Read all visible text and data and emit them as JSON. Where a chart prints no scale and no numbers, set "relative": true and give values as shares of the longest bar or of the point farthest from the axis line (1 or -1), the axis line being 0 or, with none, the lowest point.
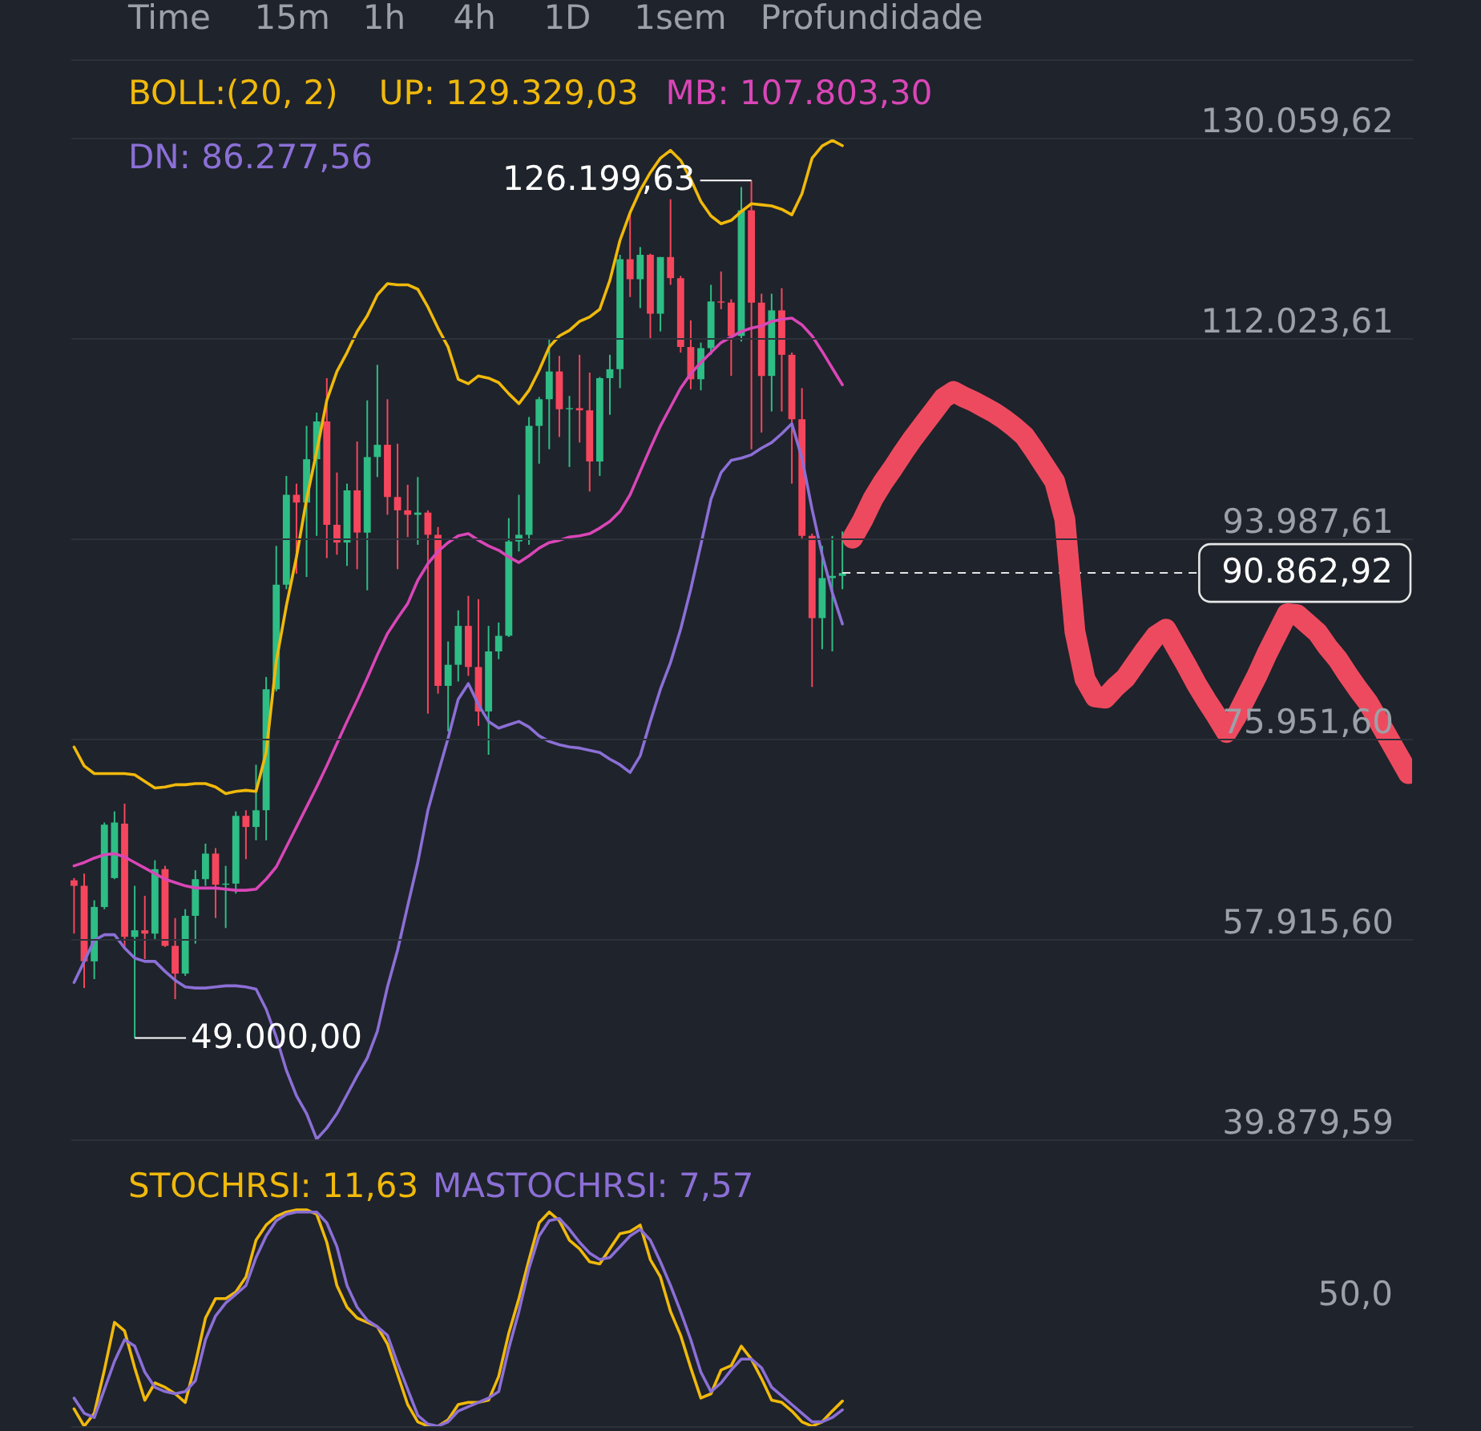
{
  "chart_data": [
    {
      "type": "other",
      "annotations": [
        "Time",
        "15m",
        "1h",
        "4h",
        "1D",
        "1sem",
        "Profundidade"
      ]
    },
    {
      "type": "candlestick",
      "categories": [
        null,
        null,
        null,
        null,
        null,
        null,
        null,
        null,
        null,
        null,
        null,
        null,
        null,
        null,
        null,
        null,
        null,
        null,
        null,
        null,
        null,
        null,
        null,
        null,
        null,
        null,
        null,
        null,
        null,
        null,
        null,
        null,
        null,
        null,
        null,
        null,
        null,
        null,
        null,
        null,
        null,
        null,
        null,
        null,
        null,
        null,
        null,
        null,
        null,
        null,
        null,
        null,
        null,
        null,
        null,
        null,
        null,
        null,
        null,
        null,
        null,
        null,
        null,
        null,
        null,
        null,
        null,
        null,
        null,
        null,
        null,
        null,
        null,
        null,
        null,
        null,
        null,
        null,
        null,
        null,
        null,
        null,
        null,
        null,
        null,
        null,
        null,
        null,
        null,
        null,
        null,
        null,
        null,
        null,
        null,
        null,
        null,
        null,
        null,
        null,
        null,
        null,
        null,
        null,
        null,
        null,
        null,
        null,
        null,
        null,
        null,
        null,
        null,
        null,
        null,
        null,
        null,
        null,
        null,
        null,
        null,
        null,
        null,
        null,
        null,
        null,
        null,
        null,
        null,
        null,
        null,
        null,
        null
      ],
      "ohlc": [
        [
          63200,
          63400,
          58400,
          62700
        ],
        [
          62700,
          63800,
          53500,
          55900
        ],
        [
          55900,
          61400,
          54300,
          60800
        ],
        [
          60800,
          68400,
          60600,
          68200
        ],
        [
          63400,
          69400,
          63300,
          68400
        ],
        [
          68300,
          70100,
          57200,
          58100
        ],
        [
          58100,
          62700,
          49000,
          58700
        ],
        [
          58700,
          61800,
          56100,
          58400
        ],
        [
          58400,
          65000,
          57800,
          64200
        ],
        [
          64200,
          64500,
          57200,
          57300
        ],
        [
          57300,
          59800,
          52500,
          54800
        ],
        [
          54800,
          60600,
          54600,
          60000
        ],
        [
          60000,
          64100,
          57500,
          63300
        ],
        [
          63300,
          66500,
          62700,
          65600
        ],
        [
          65600,
          66100,
          59800,
          62800
        ],
        [
          62800,
          64500,
          58900,
          62900
        ],
        [
          62900,
          69400,
          62000,
          69000
        ],
        [
          69000,
          69500,
          65100,
          68000
        ],
        [
          68000,
          73600,
          66800,
          69500
        ],
        [
          69500,
          81500,
          66800,
          80400
        ],
        [
          80400,
          93300,
          80200,
          89800
        ],
        [
          89800,
          99600,
          89400,
          97900
        ],
        [
          97900,
          98900,
          90800,
          97200
        ],
        [
          97200,
          104100,
          90500,
          101100
        ],
        [
          101100,
          105300,
          94200,
          104500
        ],
        [
          104500,
          108400,
          92200,
          95200
        ],
        [
          95200,
          99900,
          92500,
          93600
        ],
        [
          93600,
          98900,
          91500,
          98300
        ],
        [
          98300,
          102700,
          91200,
          94500
        ],
        [
          94500,
          106400,
          89300,
          101300
        ],
        [
          101300,
          109600,
          99500,
          102400
        ],
        [
          102400,
          106500,
          96100,
          97700
        ],
        [
          97700,
          102500,
          91200,
          96500
        ],
        [
          96500,
          98800,
          94100,
          96100
        ],
        [
          96100,
          99500,
          93400,
          96300
        ],
        [
          96300,
          96500,
          78200,
          94300
        ],
        [
          94300,
          95000,
          80000,
          80700
        ],
        [
          80700,
          84700,
          76600,
          82600
        ],
        [
          82600,
          87500,
          81100,
          86100
        ],
        [
          86100,
          88800,
          81600,
          82400
        ],
        [
          82400,
          88500,
          77100,
          78400
        ],
        [
          78400,
          86100,
          74500,
          83800
        ],
        [
          83800,
          86400,
          83100,
          85200
        ],
        [
          85200,
          95800,
          85100,
          93700
        ],
        [
          93700,
          97900,
          92800,
          94300
        ],
        [
          94300,
          104900,
          93400,
          104100
        ],
        [
          104100,
          106700,
          100700,
          106500
        ],
        [
          106500,
          111900,
          102000,
          109000
        ],
        [
          109000,
          110400,
          103100,
          105600
        ],
        [
          105600,
          106800,
          100400,
          105700
        ],
        [
          105700,
          110500,
          102600,
          105500
        ],
        [
          105500,
          108900,
          98200,
          100900
        ],
        [
          100900,
          108500,
          99600,
          108400
        ],
        [
          108400,
          110500,
          105100,
          109200
        ],
        [
          109200,
          119500,
          107500,
          119100
        ],
        [
          119100,
          123200,
          115700,
          117300
        ],
        [
          117300,
          120200,
          114700,
          119500
        ],
        [
          119500,
          119600,
          112000,
          114200
        ],
        [
          114200,
          119300,
          112600,
          119300
        ],
        [
          119300,
          124500,
          116800,
          117400
        ],
        [
          117400,
          117600,
          110700,
          111200
        ],
        [
          111200,
          113600,
          107400,
          108300
        ],
        [
          108300,
          111600,
          107300,
          111100
        ],
        [
          111100,
          116800,
          110500,
          115300
        ],
        [
          115300,
          118000,
          114600,
          115200
        ],
        [
          115200,
          115500,
          108600,
          112200
        ],
        [
          112200,
          125600,
          111700,
          123500
        ],
        [
          123500,
          126199.63,
          102000,
          115200
        ],
        [
          115200,
          116000,
          103500,
          108600
        ],
        [
          108600,
          116000,
          105400,
          114500
        ],
        [
          114500,
          116500,
          105400,
          110500
        ],
        [
          110500,
          110700,
          98900,
          104700
        ],
        [
          104700,
          107500,
          93900,
          94200
        ],
        [
          94200,
          94400,
          80600,
          86800
        ],
        [
          86800,
          93300,
          84000,
          90400
        ],
        [
          90400,
          94200,
          83800,
          90600
        ],
        [
          90600,
          94600,
          89400,
          90862.92
        ],
        null,
        null,
        null,
        null,
        null,
        null,
        null,
        null,
        null,
        null,
        null,
        null,
        null,
        null,
        null,
        null,
        null,
        null,
        null,
        null,
        null,
        null,
        null,
        null,
        null,
        null,
        null,
        null,
        null,
        null,
        null,
        null,
        null,
        null,
        null,
        null,
        null,
        null,
        null,
        null,
        null,
        null,
        null,
        null,
        null,
        null,
        null,
        null,
        null,
        null,
        null,
        null,
        null,
        null,
        null,
        null
      ],
      "colors": [
        "#f6465d",
        "#f6465d",
        "#2ebd85",
        "#2ebd85",
        "#2ebd85",
        "#f6465d",
        "#2ebd85",
        "#f6465d",
        "#2ebd85",
        "#f6465d",
        "#f6465d",
        "#2ebd85",
        "#2ebd85",
        "#2ebd85",
        "#f6465d",
        "#2ebd85",
        "#2ebd85",
        "#f6465d",
        "#2ebd85",
        "#2ebd85",
        "#2ebd85",
        "#2ebd85",
        "#f6465d",
        "#2ebd85",
        "#2ebd85",
        "#f6465d",
        "#f6465d",
        "#2ebd85",
        "#f6465d",
        "#2ebd85",
        "#2ebd85",
        "#f6465d",
        "#f6465d",
        "#f6465d",
        "#2ebd85",
        "#f6465d",
        "#f6465d",
        "#2ebd85",
        "#2ebd85",
        "#f6465d",
        "#f6465d",
        "#2ebd85",
        "#2ebd85",
        "#2ebd85",
        "#2ebd85",
        "#2ebd85",
        "#2ebd85",
        "#2ebd85",
        "#f6465d",
        "#2ebd85",
        "#f6465d",
        "#f6465d",
        "#2ebd85",
        "#2ebd85",
        "#2ebd85",
        "#f6465d",
        "#2ebd85",
        "#f6465d",
        "#2ebd85",
        "#f6465d",
        "#f6465d",
        "#f6465d",
        "#2ebd85",
        "#2ebd85",
        "#f6465d",
        "#f6465d",
        "#2ebd85",
        "#f6465d",
        "#f6465d",
        "#2ebd85",
        "#f6465d",
        "#f6465d",
        "#f6465d",
        "#f6465d",
        "#2ebd85",
        "#2ebd85",
        "#2ebd85",
        null,
        null,
        null,
        null,
        null,
        null,
        null,
        null,
        null,
        null,
        null,
        null,
        null,
        null,
        null,
        null,
        null,
        null,
        null,
        null,
        null,
        null,
        null,
        null,
        null,
        null,
        null,
        null,
        null,
        null,
        null,
        null,
        null,
        null,
        null,
        null,
        null,
        null,
        null,
        null,
        null,
        null,
        null,
        null,
        null,
        null,
        null,
        null,
        null,
        null,
        null,
        null,
        null,
        null,
        null,
        null
      ],
      "series": [
        {
          "type": "line",
          "name": "UP: 129.329,03",
          "color": "#f0b90b",
          "values": [
            75200,
            73500,
            72800,
            72800,
            72800,
            72800,
            72700,
            72100,
            71500,
            71600,
            71800,
            71800,
            71900,
            71900,
            71600,
            71000,
            71200,
            71300,
            71200,
            74700,
            82900,
            87900,
            92300,
            97500,
            101800,
            106400,
            109000,
            110700,
            112600,
            114000,
            115900,
            116900,
            116800,
            116800,
            116400,
            114800,
            112900,
            111200,
            108300,
            107900,
            108600,
            108400,
            108000,
            107000,
            106100,
            107300,
            109100,
            111200,
            112200,
            112700,
            113500,
            113900,
            114600,
            117200,
            120800,
            123300,
            125300,
            126900,
            128200,
            128900,
            128000,
            126300,
            124300,
            123000,
            122300,
            122600,
            123400,
            124100,
            124000,
            123900,
            123600,
            123100,
            125000,
            128200,
            129300,
            129800,
            129329.03,
            null,
            null,
            null,
            null,
            null,
            null,
            null,
            null,
            null,
            null,
            null,
            null,
            null,
            null,
            null,
            null,
            null,
            null,
            null,
            null,
            null,
            null,
            null,
            null,
            null,
            null,
            null,
            null,
            null,
            null,
            null,
            null,
            null,
            null,
            null,
            null,
            null,
            null,
            null,
            null,
            null,
            null,
            null,
            null,
            null,
            null,
            null,
            null,
            null,
            null,
            null,
            null,
            null,
            null,
            null,
            null
          ]
        },
        {
          "type": "line",
          "name": "MB: 107.803,30",
          "color": "#d946b7",
          "values": [
            64500,
            64800,
            65200,
            65500,
            65600,
            65300,
            64800,
            64300,
            63800,
            63300,
            63000,
            62700,
            62500,
            62500,
            62500,
            62400,
            62300,
            62300,
            62400,
            63300,
            64400,
            66200,
            68000,
            69800,
            71600,
            73500,
            75500,
            77500,
            79400,
            81400,
            83500,
            85400,
            86800,
            88100,
            90200,
            91700,
            92800,
            93600,
            94200,
            94400,
            93800,
            93300,
            92900,
            92300,
            91800,
            92400,
            93100,
            93600,
            93800,
            94100,
            94200,
            94400,
            94900,
            95500,
            96400,
            97900,
            100000,
            102100,
            104100,
            105800,
            107500,
            108800,
            109800,
            110700,
            111600,
            112100,
            112600,
            112900,
            113100,
            113500,
            113700,
            113800,
            113200,
            112200,
            110800,
            109300,
            107803.3,
            null,
            null,
            null,
            null,
            null,
            null,
            null,
            null,
            null,
            null,
            null,
            null,
            null,
            null,
            null,
            null,
            null,
            null,
            null,
            null,
            null,
            null,
            null,
            null,
            null,
            null,
            null,
            null,
            null,
            null,
            null,
            null,
            null,
            null,
            null,
            null,
            null,
            null,
            null,
            null,
            null,
            null,
            null,
            null,
            null,
            null,
            null,
            null,
            null,
            null,
            null,
            null,
            null,
            null,
            null,
            null
          ]
        },
        {
          "type": "line",
          "name": "DN: 86.277,56",
          "color": "#8b6fd6",
          "values": [
            54000,
            55900,
            57800,
            58300,
            58300,
            57100,
            56200,
            55900,
            55900,
            55000,
            54200,
            53600,
            53500,
            53500,
            53600,
            53700,
            53700,
            53600,
            53400,
            51600,
            49100,
            46100,
            43800,
            42200,
            39900,
            40900,
            42200,
            43900,
            45600,
            47200,
            49600,
            53600,
            56900,
            60900,
            64800,
            69500,
            72800,
            76000,
            79500,
            80900,
            79000,
            77500,
            76900,
            77200,
            77500,
            77000,
            76200,
            75700,
            75400,
            75200,
            75100,
            74900,
            74700,
            74100,
            73600,
            72900,
            74400,
            77500,
            80400,
            82800,
            85800,
            89400,
            93400,
            97500,
            99900,
            101000,
            101200,
            101500,
            102100,
            102600,
            103400,
            104300,
            101200,
            96600,
            92500,
            89100,
            86277.56,
            null,
            null,
            null,
            null,
            null,
            null,
            null,
            null,
            null,
            null,
            null,
            null,
            null,
            null,
            null,
            null,
            null,
            null,
            null,
            null,
            null,
            null,
            null,
            null,
            null,
            null,
            null,
            null,
            null,
            null,
            null,
            null,
            null,
            null,
            null,
            null,
            null,
            null,
            null,
            null,
            null,
            null,
            null,
            null,
            null,
            null,
            null,
            null,
            null,
            null,
            null,
            null,
            null,
            null,
            null,
            null
          ]
        },
        {
          "type": "line",
          "color": "#ee4a5f",
          "values": [
            null,
            null,
            null,
            null,
            null,
            null,
            null,
            null,
            null,
            null,
            null,
            null,
            null,
            null,
            null,
            null,
            null,
            null,
            null,
            null,
            null,
            null,
            null,
            null,
            null,
            null,
            null,
            null,
            null,
            null,
            null,
            null,
            null,
            null,
            null,
            null,
            null,
            null,
            null,
            null,
            null,
            null,
            null,
            null,
            null,
            null,
            null,
            null,
            null,
            null,
            null,
            null,
            null,
            null,
            null,
            null,
            null,
            null,
            null,
            null,
            null,
            null,
            null,
            null,
            null,
            null,
            null,
            null,
            null,
            null,
            null,
            null,
            null,
            null,
            null,
            null,
            null,
            94000,
            95600,
            97500,
            99000,
            100300,
            101700,
            103000,
            104200,
            105400,
            106600,
            107200,
            106700,
            106300,
            105800,
            105300,
            104700,
            104000,
            103200,
            101900,
            100500,
            99100,
            95700,
            85600,
            81300,
            79700,
            79600,
            80600,
            81400,
            82700,
            84000,
            85200,
            85800,
            84200,
            82600,
            80900,
            79400,
            78000,
            76500,
            78000,
            79800,
            81600,
            83600,
            85400,
            87200,
            87100,
            86300,
            85500,
            84200,
            83100,
            81700,
            80400,
            79200,
            77600,
            76000,
            74400,
            72800
          ]
        }
      ],
      "ylim": [
        39879.59,
        137100
      ],
      "yticks": [
        {
          "value": 39879.59,
          "label": "39.879,59"
        },
        {
          "value": 57915.6,
          "label": "57.915,60"
        },
        {
          "value": 75951.6,
          "label": "75.951,60"
        },
        {
          "value": 93987.61,
          "label": "93.987,61"
        },
        {
          "value": 112023.61,
          "label": "112.023,61"
        },
        {
          "value": 130059.62,
          "label": "130.059,62"
        }
      ],
      "grid": "y",
      "legend": "top left",
      "legend_title": "BOLL:(20, 2)",
      "tick_labels": "y",
      "ref_lines": [
        {
          "axis": "y",
          "value": 90862.92,
          "label": "90.862,92",
          "color": "#e6e6e6",
          "line_style": "dashed"
        }
      ],
      "annotations": [
        "126.199,63",
        "49.000,00"
      ]
    },
    {
      "type": "line",
      "relative": true,
      "categories": [
        null,
        null,
        null,
        null,
        null,
        null,
        null,
        null,
        null,
        null,
        null,
        null,
        null,
        null,
        null,
        null,
        null,
        null,
        null,
        null,
        null,
        null,
        null,
        null,
        null,
        null,
        null,
        null,
        null,
        null,
        null,
        null,
        null,
        null,
        null,
        null,
        null,
        null,
        null,
        null,
        null,
        null,
        null,
        null,
        null,
        null,
        null,
        null,
        null,
        null,
        null,
        null,
        null,
        null,
        null,
        null,
        null,
        null,
        null,
        null,
        null,
        null,
        null,
        null,
        null,
        null,
        null,
        null,
        null,
        null,
        null,
        null,
        null,
        null,
        null,
        null,
        null,
        null,
        null,
        null,
        null,
        null,
        null,
        null,
        null,
        null,
        null,
        null,
        null,
        null,
        null,
        null,
        null,
        null,
        null,
        null,
        null,
        null,
        null,
        null,
        null,
        null,
        null,
        null,
        null,
        null,
        null,
        null,
        null,
        null,
        null,
        null,
        null,
        null,
        null,
        null,
        null,
        null,
        null,
        null,
        null,
        null,
        null,
        null,
        null,
        null,
        null,
        null,
        null,
        null,
        null,
        null,
        null
      ],
      "series": [
        {
          "name": "STOCHRSI: 11,63",
          "color": "#f0b90b",
          "values": [
            0.08,
            0,
            0.06,
            0.26,
            0.48,
            0.44,
            0.27,
            0.12,
            0.2,
            0.18,
            0.15,
            0.11,
            0.29,
            0.5,
            0.59,
            0.59,
            0.62,
            0.69,
            0.86,
            0.93,
            0.97,
            0.99,
            1,
            1,
            0.98,
            0.85,
            0.65,
            0.55,
            0.5,
            0.48,
            0.46,
            0.38,
            0.24,
            0.1,
            0.02,
            0,
            0,
            0.03,
            0.1,
            0.11,
            0.11,
            0.12,
            0.23,
            0.43,
            0.59,
            0.77,
            0.94,
            0.99,
            0.95,
            0.86,
            0.82,
            0.76,
            0.75,
            0.82,
            0.89,
            0.9,
            0.93,
            0.77,
            0.69,
            0.53,
            0.42,
            0.27,
            0.13,
            0.15,
            0.26,
            0.28,
            0.37,
            0.31,
            0.22,
            0.12,
            0.11,
            0.07,
            0.02,
            0,
            0.02,
            0.07,
            0.1163,
            null,
            null,
            null,
            null,
            null,
            null,
            null,
            null,
            null,
            null,
            null,
            null,
            null,
            null,
            null,
            null,
            null,
            null,
            null,
            null,
            null,
            null,
            null,
            null,
            null,
            null,
            null,
            null,
            null,
            null,
            null,
            null,
            null,
            null,
            null,
            null,
            null,
            null,
            null,
            null,
            null,
            null,
            null,
            null,
            null,
            null,
            null,
            null,
            null,
            null,
            null,
            null,
            null,
            null,
            null,
            null
          ]
        },
        {
          "name": "MASTOCHRSI: 7,57",
          "color": "#8b6fd6",
          "values": [
            0.13,
            0.06,
            0.04,
            0.17,
            0.3,
            0.4,
            0.37,
            0.25,
            0.18,
            0.16,
            0.15,
            0.16,
            0.21,
            0.4,
            0.51,
            0.57,
            0.61,
            0.65,
            0.78,
            0.88,
            0.95,
            0.98,
            0.99,
            0.99,
            0.99,
            0.94,
            0.83,
            0.65,
            0.55,
            0.49,
            0.46,
            0.42,
            0.29,
            0.17,
            0.05,
            0.01,
            0,
            0.02,
            0.07,
            0.09,
            0.11,
            0.13,
            0.16,
            0.36,
            0.53,
            0.73,
            0.88,
            0.95,
            0.96,
            0.91,
            0.85,
            0.8,
            0.77,
            0.78,
            0.83,
            0.88,
            0.91,
            0.86,
            0.76,
            0.65,
            0.53,
            0.4,
            0.25,
            0.16,
            0.2,
            0.26,
            0.31,
            0.31,
            0.27,
            0.18,
            0.14,
            0.1,
            0.06,
            0.02,
            0.02,
            0.04,
            0.0757,
            null,
            null,
            null,
            null,
            null,
            null,
            null,
            null,
            null,
            null,
            null,
            null,
            null,
            null,
            null,
            null,
            null,
            null,
            null,
            null,
            null,
            null,
            null,
            null,
            null,
            null,
            null,
            null,
            null,
            null,
            null,
            null,
            null,
            null,
            null,
            null,
            null,
            null,
            null,
            null,
            null,
            null,
            null,
            null,
            null,
            null,
            null,
            null,
            null,
            null,
            null,
            null,
            null,
            null,
            null,
            null
          ]
        }
      ],
      "legend": "top left",
      "tick_labels": false,
      "annotations": [
        "50,0"
      ]
    }
  ]
}
